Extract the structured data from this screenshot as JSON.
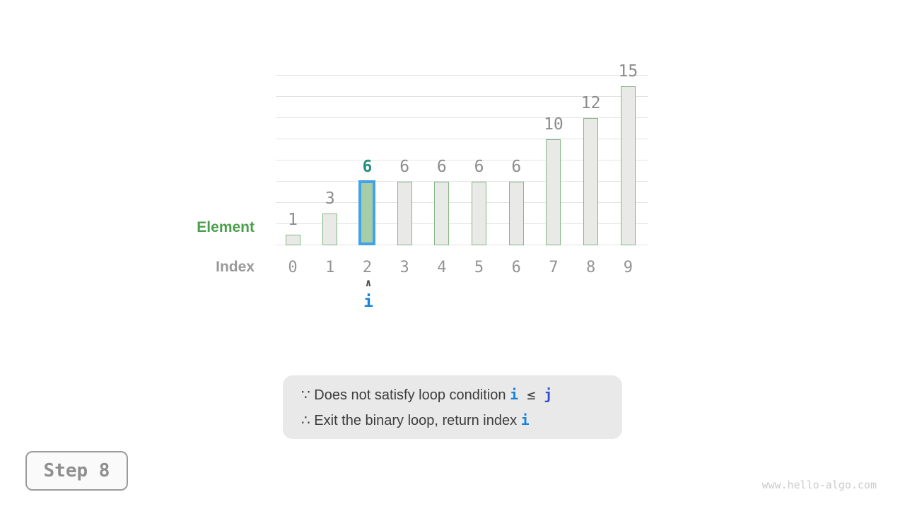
{
  "chart_data": {
    "type": "bar",
    "categories": [
      0,
      1,
      2,
      3,
      4,
      5,
      6,
      7,
      8,
      9
    ],
    "values": [
      1,
      3,
      6,
      6,
      6,
      6,
      6,
      10,
      12,
      15
    ],
    "highlighted_index": 2,
    "title": "",
    "xlabel": "Index",
    "ylabel": "Element",
    "ylim": [
      0,
      16
    ],
    "grid_step": 2,
    "grid": true,
    "legend": "none"
  },
  "axis": {
    "element_label": "Element",
    "index_label": "Index"
  },
  "pointer": {
    "caret": "∧",
    "label": "i",
    "at_index": 2
  },
  "note": {
    "lines": [
      {
        "segments": [
          {
            "t": "∵ Does not satisfy loop condition ",
            "c": "t"
          },
          {
            "t": "i",
            "c": "i"
          },
          {
            "t": " ≤ ",
            "c": "op"
          },
          {
            "t": "j",
            "c": "j"
          }
        ]
      },
      {
        "segments": [
          {
            "t": "∴ Exit the binary loop, return index ",
            "c": "t"
          },
          {
            "t": "i",
            "c": "i"
          }
        ]
      }
    ]
  },
  "step": {
    "label": "Step 8"
  },
  "watermark": "www.hello-algo.com",
  "colors": {
    "bar_fill": "#e9e9e7",
    "bar_border": "#84b884",
    "highlight_fill": "#a7cda7",
    "highlight_border": "#41a2e8",
    "value_label": "#8c8c8c",
    "value_label_highlight": "#27917d",
    "element_label": "#4c9e4c",
    "index_label": "#999999",
    "pointer_blue": "#1584db",
    "j_blue": "#3150d2",
    "note_bg": "#e9e9e9",
    "gridline": "#e3e3e3"
  }
}
